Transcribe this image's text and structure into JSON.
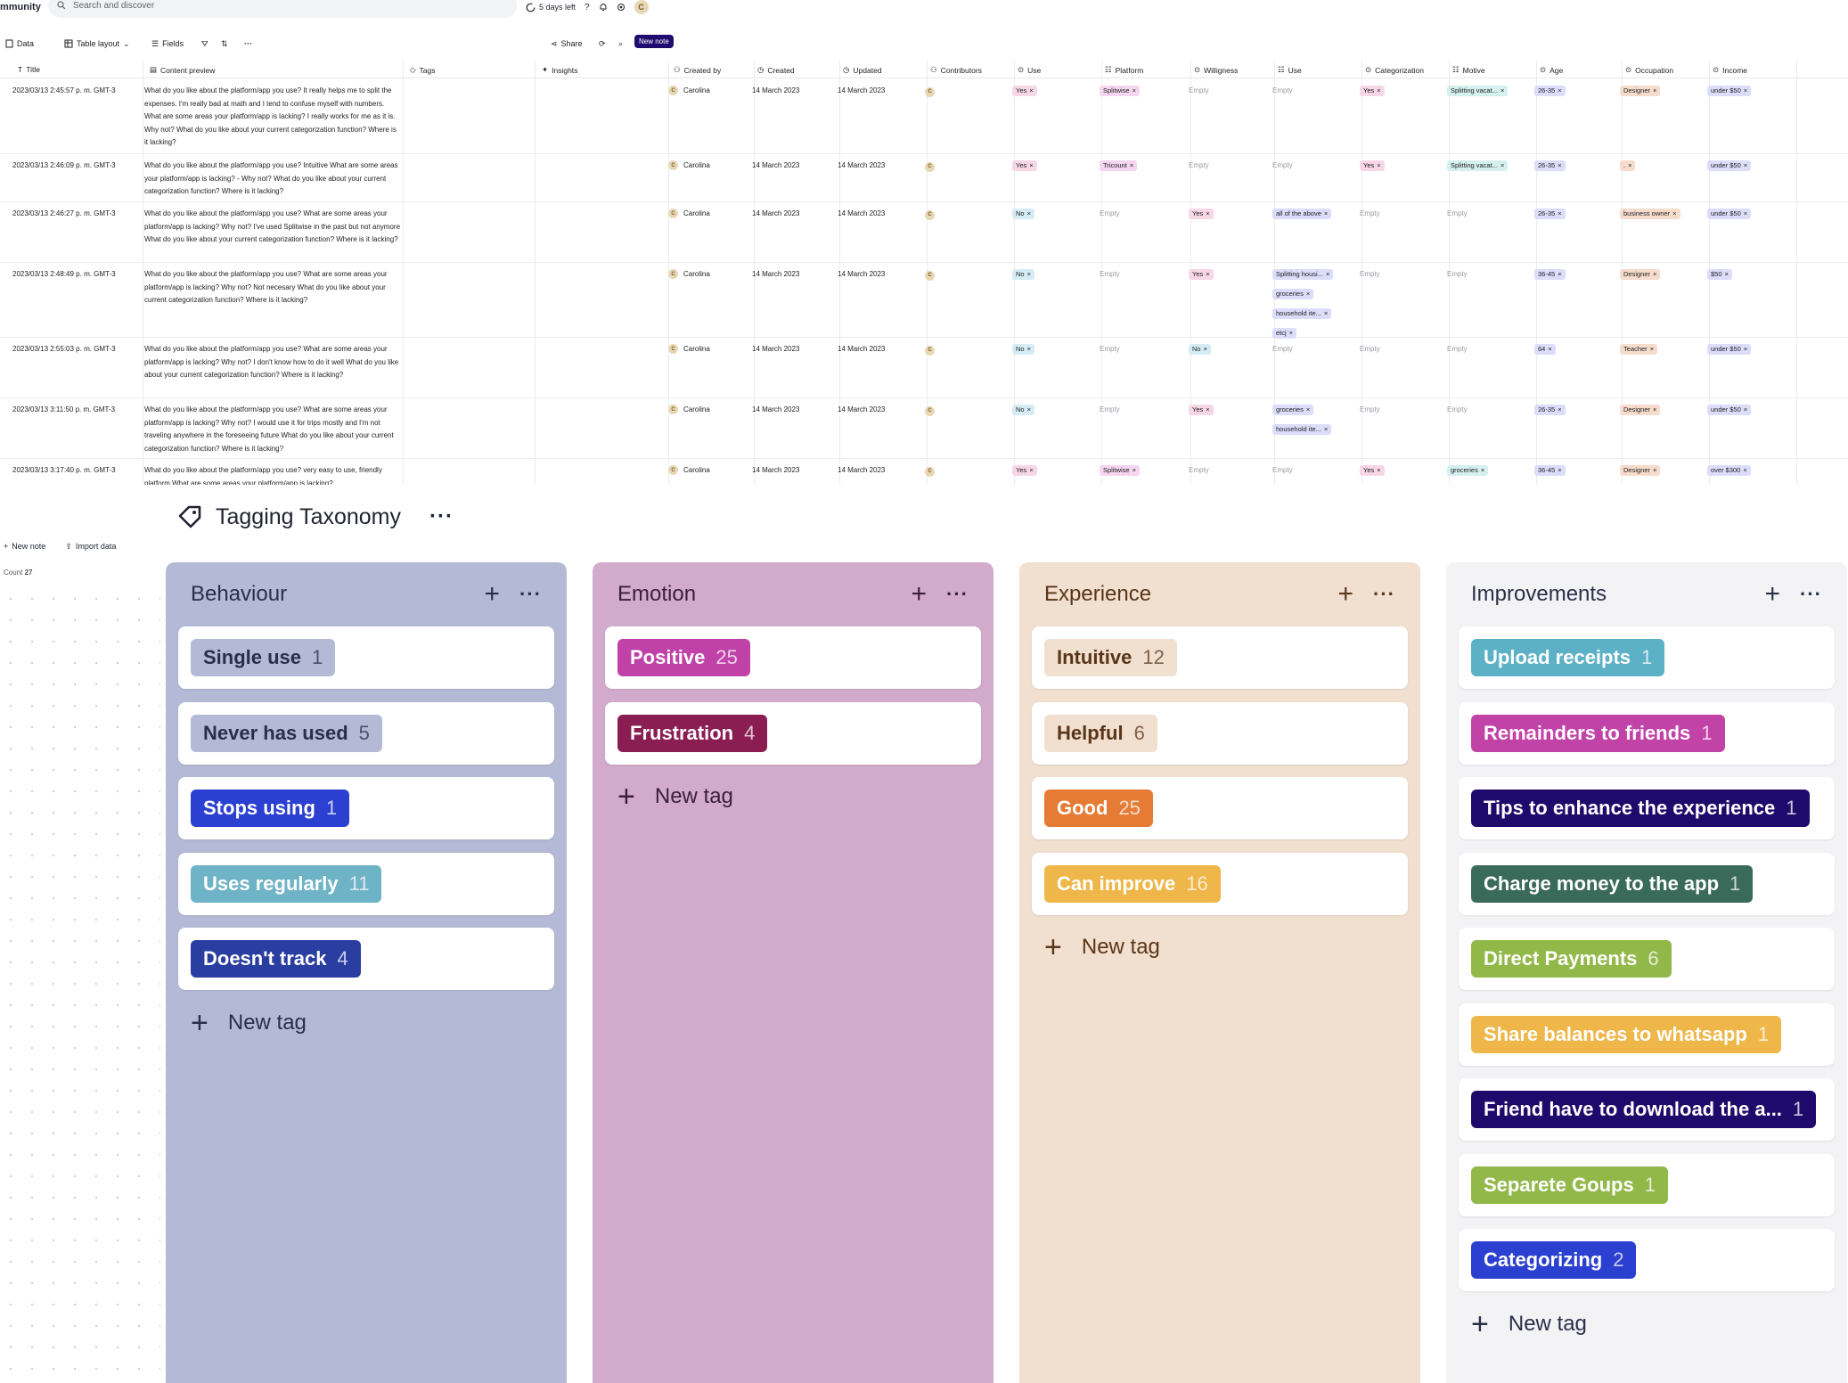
{
  "top": {
    "brand": "mmunity",
    "search_placeholder": "Search and discover",
    "trial": "5 days left",
    "avatar": "C"
  },
  "toolbar": {
    "data": "Data",
    "layout": "Table layout",
    "fields": "Fields",
    "share": "Share",
    "new_note": "New note"
  },
  "table": {
    "headers": [
      "Title",
      "Content preview",
      "Tags",
      "Insights",
      "Created by",
      "Created",
      "Updated",
      "Contributors",
      "Use",
      "Platform",
      "Willigness",
      "Use",
      "Categorization",
      "Motive",
      "Age",
      "Occupation",
      "Income"
    ],
    "empty_label": "Empty",
    "rows": [
      {
        "title": "2023/03/13 2:45:57 p. m. GMT-3",
        "content": "What do you like about the platform/app you use? It really helps me to split the expenses. I'm really bad at math and I tend to confuse myself with numbers. What are some areas your platform/app is lacking? I really works for me as it is. Why not? What do you like about your current categorization function? Where is it lacking?",
        "by": "Carolina",
        "created": "14 March 2023",
        "updated": "14 March 2023",
        "use": [
          "Yes"
        ],
        "platform": [
          "Splitwise"
        ],
        "will": [],
        "use2": [],
        "cat": [
          "Yes"
        ],
        "motive": [
          "Splitting vacat..."
        ],
        "age": [
          "26-35"
        ],
        "occ": [
          "Designer"
        ],
        "income": [
          "under $50"
        ]
      },
      {
        "title": "2023/03/13 2:46:09 p. m. GMT-3",
        "content": "What do you like about the platform/app you use? Intuitive What are some areas your platform/app is lacking? - Why not? What do you like about your current categorization function? Where is it lacking?",
        "by": "Carolina",
        "created": "14 March 2023",
        "updated": "14 March 2023",
        "use": [
          "Yes"
        ],
        "platform": [
          "Tricount"
        ],
        "will": [],
        "use2": [],
        "cat": [
          "Yes"
        ],
        "motive": [
          "Splitting vacat..."
        ],
        "age": [
          "26-35"
        ],
        "occ": [
          "."
        ],
        "income": [
          "under $50"
        ]
      },
      {
        "title": "2023/03/13 2:46:27 p. m. GMT-3",
        "content": "What do you like about the platform/app you use? What are some areas your platform/app is lacking? Why not? I've used Splitwise in the past but not anymore What do you like about your current categorization function? Where is it lacking?",
        "by": "Carolina",
        "created": "14 March 2023",
        "updated": "14 March 2023",
        "use": [
          "No"
        ],
        "platform": [],
        "will": [
          "Yes"
        ],
        "use2": [
          "all of the above"
        ],
        "cat": [],
        "motive": [],
        "age": [
          "26-35"
        ],
        "occ": [
          "business owner"
        ],
        "income": [
          "under $50"
        ]
      },
      {
        "title": "2023/03/13 2:48:49 p. m. GMT-3",
        "content": "What do you like about the platform/app you use? What are some areas your platform/app is lacking? Why not? Not necesary What do you like about your current categorization function? Where is it lacking?",
        "by": "Carolina",
        "created": "14 March 2023",
        "updated": "14 March 2023",
        "use": [
          "No"
        ],
        "platform": [],
        "will": [
          "Yes"
        ],
        "use2": [
          "Splitting housi...",
          "groceries",
          "household ite...",
          "etcj"
        ],
        "cat": [],
        "motive": [],
        "age": [
          "36-45"
        ],
        "occ": [
          "Designer"
        ],
        "income": [
          "$50"
        ]
      },
      {
        "title": "2023/03/13 2:55:03 p. m. GMT-3",
        "content": "What do you like about the platform/app you use? What are some areas your platform/app is lacking? Why not? I don't know how to do it well What do you like about your current categorization function? Where is it lacking?",
        "by": "Carolina",
        "created": "14 March 2023",
        "updated": "14 March 2023",
        "use": [
          "No"
        ],
        "platform": [],
        "will": [
          "No"
        ],
        "use2": [],
        "cat": [],
        "motive": [],
        "age": [
          "64"
        ],
        "occ": [
          "Teacher"
        ],
        "income": [
          "under $50"
        ]
      },
      {
        "title": "2023/03/13 3:11:50 p. m. GMT-3",
        "content": "What do you like about the platform/app you use? What are some areas your platform/app is lacking? Why not? I would use it for trips mostly and I'm not traveling anywhere in the foreseeing future What do you like about your current categorization function? Where is it lacking?",
        "by": "Carolina",
        "created": "14 March 2023",
        "updated": "14 March 2023",
        "use": [
          "No"
        ],
        "platform": [],
        "will": [
          "Yes"
        ],
        "use2": [
          "groceries",
          "household ite..."
        ],
        "cat": [],
        "motive": [],
        "age": [
          "26-35"
        ],
        "occ": [
          "Designer"
        ],
        "income": [
          "under $50"
        ]
      },
      {
        "title": "2023/03/13 3:17:40 p. m. GMT-3",
        "content": "What do you like about the platform/app you use? very easy to use, friendly platform What are some areas your platform/app is lacking?",
        "by": "Carolina",
        "created": "14 March 2023",
        "updated": "14 March 2023",
        "use": [
          "Yes"
        ],
        "platform": [
          "Splitwise"
        ],
        "will": [],
        "use2": [],
        "cat": [
          "Yes"
        ],
        "motive": [
          "groceries"
        ],
        "age": [
          "36-45"
        ],
        "occ": [
          "Designer"
        ],
        "income": [
          "over $300"
        ]
      }
    ]
  },
  "left_panel": {
    "new_note": "New note",
    "import": "Import data",
    "count_label": "Count",
    "count": "27"
  },
  "taxonomy": {
    "title": "Tagging Taxonomy",
    "new_tag": "New tag",
    "columns": [
      {
        "title": "Behaviour",
        "bg": "#b4bad6",
        "title_color": "#2a2f48",
        "tags": [
          {
            "label": "Single use",
            "count": "1",
            "bg": "#b4bad6",
            "fg": "#2a2f48"
          },
          {
            "label": "Never has used",
            "count": "5",
            "bg": "#b4bad6",
            "fg": "#2a2f48"
          },
          {
            "label": "Stops using",
            "count": "1",
            "bg": "#2b3fd1",
            "fg": "#ffffff"
          },
          {
            "label": "Uses regularly",
            "count": "11",
            "bg": "#6fb3c6",
            "fg": "#ffffff"
          },
          {
            "label": "Doesn't track",
            "count": "4",
            "bg": "#2a3da0",
            "fg": "#ffffff"
          }
        ]
      },
      {
        "title": "Emotion",
        "bg": "#d2abcc",
        "title_color": "#3a2038",
        "tags": [
          {
            "label": "Positive",
            "count": "25",
            "bg": "#c042a9",
            "fg": "#ffffff"
          },
          {
            "label": "Frustration",
            "count": "4",
            "bg": "#8a1d52",
            "fg": "#ffffff"
          }
        ]
      },
      {
        "title": "Experience",
        "bg": "#f1dfd0",
        "title_color": "#5a3518",
        "tags": [
          {
            "label": "Intuitive",
            "count": "12",
            "bg": "#f1dfd0",
            "fg": "#5a3518"
          },
          {
            "label": "Helpful",
            "count": "6",
            "bg": "#f1dfd0",
            "fg": "#5a3518"
          },
          {
            "label": "Good",
            "count": "25",
            "bg": "#e57b35",
            "fg": "#ffffff"
          },
          {
            "label": "Can improve",
            "count": "16",
            "bg": "#efb74a",
            "fg": "#ffffff"
          }
        ]
      },
      {
        "title": "Improvements",
        "bg": "#f3f3f6",
        "title_color": "#2a2f48",
        "tags": [
          {
            "label": "Upload receipts",
            "count": "1",
            "bg": "#5cb1c7",
            "fg": "#ffffff"
          },
          {
            "label": "Remainders to friends",
            "count": "1",
            "bg": "#c243a8",
            "fg": "#ffffff"
          },
          {
            "label": "Tips to enhance the experience",
            "count": "1",
            "bg": "#1d0a6b",
            "fg": "#ffffff"
          },
          {
            "label": "Charge money to the app",
            "count": "1",
            "bg": "#3a6a5a",
            "fg": "#ffffff"
          },
          {
            "label": "Direct Payments",
            "count": "6",
            "bg": "#93b84a",
            "fg": "#ffffff"
          },
          {
            "label": "Share balances to whatsapp",
            "count": "1",
            "bg": "#efb74a",
            "fg": "#ffffff"
          },
          {
            "label": "Friend have to download the a...",
            "count": "1",
            "bg": "#1d0a6b",
            "fg": "#ffffff"
          },
          {
            "label": "Separete Goups",
            "count": "1",
            "bg": "#93b84a",
            "fg": "#ffffff"
          },
          {
            "label": "Categorizing",
            "count": "2",
            "bg": "#2b3fd1",
            "fg": "#ffffff"
          }
        ]
      }
    ]
  },
  "colors": {
    "chip_yes": "#f7d6e6",
    "chip_no": "#d5ecf5",
    "chip_platform": "#f5d5ef",
    "chip_use2": "#dcdcfb",
    "chip_cat": "#f7d6e6",
    "chip_motive": "#d4f0ef",
    "chip_age": "#dcdcfb",
    "chip_occ": "#f5dccc",
    "chip_income": "#dcdcfb",
    "accent": "#1f0b6e"
  }
}
